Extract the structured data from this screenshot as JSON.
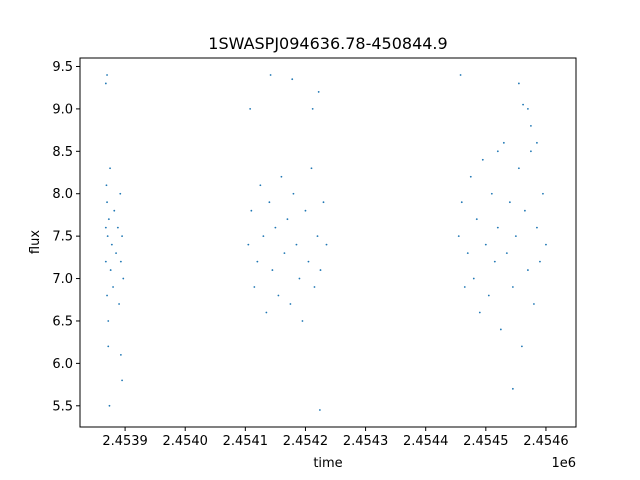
{
  "chart_data": {
    "type": "scatter",
    "title": "1SWASPJ094636.78-450844.9",
    "xlabel": "time",
    "ylabel": "flux",
    "x_offset_label": "1e6",
    "xlim": [
      2453825,
      2454650
    ],
    "ylim": [
      5.25,
      9.6
    ],
    "x_ticks": [
      2453900,
      2454000,
      2454100,
      2454200,
      2454300,
      2454400,
      2454500,
      2454600
    ],
    "x_tick_labels": [
      "2.4539",
      "2.4540",
      "2.4541",
      "2.4542",
      "2.4543",
      "2.4544",
      "2.4545",
      "2.4546"
    ],
    "y_ticks": [
      5.5,
      6.0,
      6.5,
      7.0,
      7.5,
      8.0,
      8.5,
      9.0,
      9.5
    ],
    "y_tick_labels": [
      "5.5",
      "6.0",
      "6.5",
      "7.0",
      "7.5",
      "8.0",
      "8.5",
      "9.0",
      "9.5"
    ],
    "grid": false,
    "point_color": "#1f77b4",
    "series": [
      {
        "x": [
          2453868,
          2453868,
          2453869,
          2453870,
          2453870,
          2453871,
          2453872,
          2453873,
          2453875,
          2453876,
          2453878,
          2453880,
          2453882,
          2453885,
          2453888,
          2453890,
          2453892,
          2453893,
          2453895,
          2453897,
          2453868,
          2453870,
          2453872,
          2453874,
          2453893,
          2453895,
          2454105,
          2454110,
          2454115,
          2454120,
          2454125,
          2454130,
          2454135,
          2454140,
          2454145,
          2454150,
          2454155,
          2454160,
          2454165,
          2454170,
          2454175,
          2454180,
          2454185,
          2454190,
          2454195,
          2454200,
          2454205,
          2454210,
          2454215,
          2454220,
          2454225,
          2454230,
          2454235,
          2454108,
          2454142,
          2454178,
          2454212,
          2454222,
          2454224,
          2454455,
          2454460,
          2454465,
          2454470,
          2454475,
          2454480,
          2454485,
          2454490,
          2454495,
          2454500,
          2454505,
          2454510,
          2454515,
          2454520,
          2454525,
          2454530,
          2454535,
          2454540,
          2454545,
          2454550,
          2454555,
          2454560,
          2454565,
          2454570,
          2454575,
          2454580,
          2454585,
          2454590,
          2454595,
          2454600,
          2454458,
          2454520,
          2454555,
          2454562,
          2454570,
          2454575,
          2454585,
          2454545
        ],
        "y": [
          7.6,
          7.2,
          8.1,
          6.8,
          7.9,
          7.5,
          6.5,
          7.7,
          8.3,
          7.1,
          7.4,
          6.9,
          7.8,
          7.3,
          7.6,
          6.7,
          8.0,
          7.2,
          7.5,
          7.0,
          9.3,
          9.4,
          6.2,
          5.5,
          6.1,
          5.8,
          7.4,
          7.8,
          6.9,
          7.2,
          8.1,
          7.5,
          6.6,
          7.9,
          7.1,
          7.6,
          6.8,
          8.2,
          7.3,
          7.7,
          6.7,
          8.0,
          7.4,
          7.0,
          6.5,
          7.8,
          7.2,
          8.3,
          6.9,
          7.5,
          7.1,
          7.9,
          7.4,
          9.0,
          9.4,
          9.35,
          9.0,
          9.2,
          5.45,
          7.5,
          7.9,
          6.9,
          7.3,
          8.2,
          7.0,
          7.7,
          6.6,
          8.4,
          7.4,
          6.8,
          8.0,
          7.2,
          7.6,
          6.4,
          8.6,
          7.3,
          7.9,
          6.9,
          7.5,
          8.3,
          6.2,
          7.8,
          7.1,
          8.5,
          6.7,
          7.6,
          7.2,
          8.0,
          7.4,
          9.4,
          8.5,
          9.3,
          9.05,
          9.0,
          8.8,
          8.6,
          5.7
        ]
      }
    ]
  }
}
